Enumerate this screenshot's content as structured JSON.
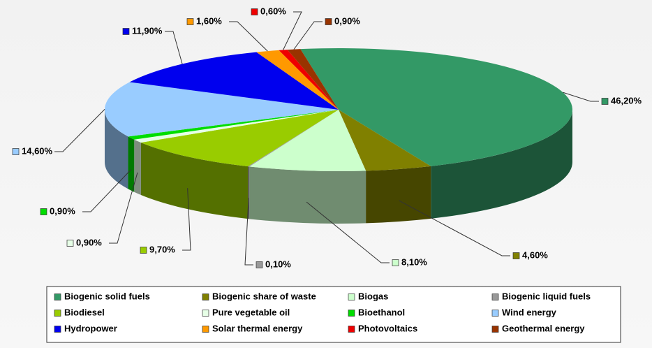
{
  "chart_data": {
    "type": "pie3d",
    "categories": [
      "Biogenic solid fuels",
      "Biogenic share of waste",
      "Biogas",
      "Biogenic liquid fuels",
      "Biodiesel",
      "Pure vegetable oil",
      "Bioethanol",
      "Wind energy",
      "Hydropower",
      "Solar thermal energy",
      "Photovoltaics",
      "Geothermal energy"
    ],
    "values": [
      46.2,
      4.6,
      8.1,
      0.1,
      9.7,
      0.9,
      0.9,
      14.6,
      11.9,
      1.6,
      0.6,
      0.9
    ],
    "value_labels": [
      "46,20%",
      "4,60%",
      "8,10%",
      "0,10%",
      "9,70%",
      "0,90%",
      "0,90%",
      "14,60%",
      "11,90%",
      "1,60%",
      "0,60%",
      "0,90%"
    ],
    "colors": [
      "#339966",
      "#808000",
      "#ccffcc",
      "#999999",
      "#99cc00",
      "#e6ffe6",
      "#00dd00",
      "#99ccff",
      "#0000ee",
      "#ff9900",
      "#ee0000",
      "#993300"
    ],
    "legend": "bottom"
  }
}
